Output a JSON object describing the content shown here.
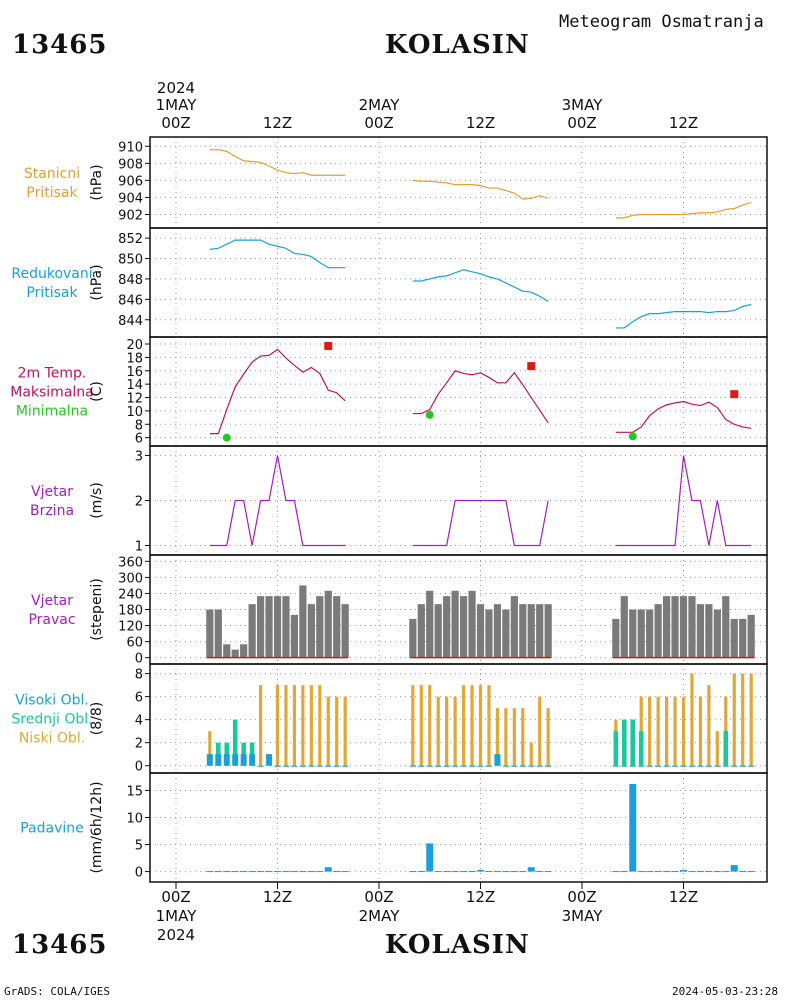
{
  "header": {
    "station_id": "13465",
    "station_name": "KOLASIN",
    "product": "Meteogram Osmatranja"
  },
  "footer": {
    "station_id": "13465",
    "station_name": "KOLASIN",
    "credit": "GrADS: COLA/IGES",
    "timestamp": "2024-05-03-23:28"
  },
  "time_axis": {
    "year": "2024",
    "labels": [
      {
        "hour": 0,
        "text": "00Z",
        "date": "1MAY"
      },
      {
        "hour": 12,
        "text": "12Z",
        "date": ""
      },
      {
        "hour": 24,
        "text": "00Z",
        "date": "2MAY"
      },
      {
        "hour": 36,
        "text": "12Z",
        "date": ""
      },
      {
        "hour": 48,
        "text": "00Z",
        "date": "3MAY"
      },
      {
        "hour": 60,
        "text": "12Z",
        "date": ""
      }
    ]
  },
  "colors": {
    "pressure": "#e0a030",
    "reduced": "#1aa0d8",
    "temp": "#c0145a",
    "tmax": "#e01818",
    "tmin": "#22c822",
    "wind": "#a020c0",
    "dir_bar": "#7a7a7a",
    "cloud_high": "#1aa0d8",
    "cloud_mid": "#1ac89a",
    "cloud_low": "#e0a838",
    "precip": "#1a9ee0"
  },
  "chart_data": [
    {
      "type": "line",
      "id": "station_pressure",
      "title_lines": [
        "Stanicni",
        "Pritisak"
      ],
      "ylabel": "(hPa)",
      "ylim": [
        901,
        910.5
      ],
      "yticks": [
        902,
        904,
        906,
        908,
        910
      ],
      "series": [
        {
          "x": [
            4,
            5,
            6,
            7,
            8,
            9,
            10,
            11,
            12,
            13,
            14,
            15,
            16,
            17,
            18,
            19,
            20
          ],
          "y": [
            909.6,
            909.6,
            909.4,
            908.8,
            908.3,
            908.2,
            908.1,
            907.7,
            907.2,
            906.9,
            906.8,
            906.9,
            906.6,
            906.6,
            906.6,
            906.6,
            906.6
          ]
        },
        {
          "x": [
            28,
            29,
            30,
            31,
            32,
            33,
            34,
            35,
            36,
            37,
            38,
            39,
            40,
            41,
            42,
            43,
            44
          ],
          "y": [
            906.0,
            905.9,
            905.9,
            905.8,
            905.7,
            905.5,
            905.5,
            905.5,
            905.4,
            905.1,
            905.1,
            904.8,
            904.5,
            903.8,
            903.9,
            904.2,
            903.9
          ]
        },
        {
          "x": [
            52,
            53,
            54,
            55,
            56,
            57,
            58,
            59,
            60,
            61,
            62,
            63,
            64,
            65,
            66,
            67,
            68
          ],
          "y": [
            901.6,
            901.6,
            901.9,
            902.0,
            902.0,
            902.0,
            902.0,
            902.0,
            902.0,
            902.1,
            902.2,
            902.2,
            902.3,
            902.6,
            902.7,
            903.1,
            903.4
          ]
        }
      ]
    },
    {
      "type": "line",
      "id": "reduced_pressure",
      "title_lines": [
        "Redukovani",
        "Pritisak"
      ],
      "ylabel": "(hPa)",
      "ylim": [
        842.8,
        852.5
      ],
      "yticks": [
        844,
        846,
        848,
        850,
        852
      ],
      "series": [
        {
          "x": [
            4,
            5,
            6,
            7,
            8,
            9,
            10,
            11,
            12,
            13,
            14,
            15,
            16,
            17,
            18,
            19,
            20
          ],
          "y": [
            850.9,
            851.0,
            851.4,
            851.8,
            851.8,
            851.8,
            851.8,
            851.4,
            851.2,
            851.0,
            850.5,
            850.4,
            850.2,
            849.6,
            849.1,
            849.1,
            849.1
          ]
        },
        {
          "x": [
            28,
            29,
            30,
            31,
            32,
            33,
            34,
            35,
            36,
            37,
            38,
            39,
            40,
            41,
            42,
            43,
            44
          ],
          "y": [
            847.8,
            847.8,
            848.0,
            848.2,
            848.3,
            848.6,
            848.9,
            848.7,
            848.5,
            848.2,
            848.0,
            847.6,
            847.2,
            846.8,
            846.7,
            846.3,
            845.8
          ]
        },
        {
          "x": [
            52,
            53,
            54,
            55,
            56,
            57,
            58,
            59,
            60,
            61,
            62,
            63,
            64,
            65,
            66,
            67,
            68
          ],
          "y": [
            843.2,
            843.2,
            843.8,
            844.3,
            844.6,
            844.6,
            844.7,
            844.8,
            844.8,
            844.8,
            844.8,
            844.7,
            844.8,
            844.8,
            844.9,
            845.3,
            845.5
          ]
        }
      ]
    },
    {
      "type": "line",
      "id": "temperature",
      "title_lines": [
        "2m Temp.",
        "Maksimalna",
        "Minimalna"
      ],
      "ylabel": "(C)",
      "ylim": [
        5.5,
        20.3
      ],
      "yticks": [
        6,
        8,
        10,
        12,
        14,
        16,
        18,
        20
      ],
      "series": [
        {
          "x": [
            4,
            5,
            6,
            7,
            8,
            9,
            10,
            11,
            12,
            13,
            14,
            15,
            16,
            17,
            18,
            19,
            20
          ],
          "y": [
            6.6,
            6.6,
            10.2,
            13.6,
            15.5,
            17.3,
            18.2,
            18.3,
            19.2,
            17.9,
            16.8,
            15.8,
            16.5,
            15.6,
            13.1,
            12.7,
            11.5
          ]
        },
        {
          "x": [
            28,
            29,
            30,
            31,
            32,
            33,
            34,
            35,
            36,
            37,
            38,
            39,
            40,
            41,
            42,
            43,
            44
          ],
          "y": [
            9.6,
            9.6,
            10.2,
            12.5,
            14.2,
            16.0,
            15.6,
            15.4,
            15.7,
            15.0,
            14.2,
            14.2,
            15.7,
            13.9,
            12.0,
            10.1,
            8.2
          ]
        },
        {
          "x": [
            52,
            53,
            54,
            55,
            56,
            57,
            58,
            59,
            60,
            61,
            62,
            63,
            64,
            65,
            66,
            67,
            68
          ],
          "y": [
            6.8,
            6.8,
            6.8,
            7.6,
            9.3,
            10.3,
            10.9,
            11.2,
            11.4,
            11.0,
            10.8,
            11.3,
            10.5,
            8.7,
            8.0,
            7.6,
            7.4
          ]
        }
      ],
      "maxima": [
        {
          "x": 18,
          "y": 19.7
        },
        {
          "x": 42,
          "y": 16.7
        },
        {
          "x": 66,
          "y": 12.5
        }
      ],
      "minima": [
        {
          "x": 6,
          "y": 6.0
        },
        {
          "x": 30,
          "y": 9.4
        },
        {
          "x": 54,
          "y": 6.2
        }
      ]
    },
    {
      "type": "line",
      "id": "wind_speed",
      "title_lines": [
        "Vjetar",
        "Brzina"
      ],
      "ylabel": "(m/s)",
      "ylim": [
        0.9,
        3.1
      ],
      "yticks": [
        1,
        2,
        3
      ],
      "series": [
        {
          "x": [
            4,
            5,
            6,
            7,
            8,
            9,
            10,
            11,
            12,
            13,
            14,
            15,
            16,
            17,
            18,
            19,
            20
          ],
          "y": [
            1,
            1,
            1,
            2,
            2,
            1,
            2,
            2,
            3,
            2,
            2,
            1,
            1,
            1,
            1,
            1,
            1
          ]
        },
        {
          "x": [
            28,
            29,
            30,
            31,
            32,
            33,
            34,
            35,
            36,
            37,
            38,
            39,
            40,
            41,
            42,
            43,
            44
          ],
          "y": [
            1,
            1,
            1,
            1,
            1,
            2,
            2,
            2,
            2,
            2,
            2,
            2,
            1,
            1,
            1,
            1,
            2
          ]
        },
        {
          "x": [
            52,
            53,
            54,
            55,
            56,
            57,
            58,
            59,
            60,
            61,
            62,
            63,
            64,
            65,
            66,
            67,
            68
          ],
          "y": [
            1,
            1,
            1,
            1,
            1,
            1,
            1,
            1,
            3,
            2,
            2,
            1,
            2,
            1,
            1,
            1,
            1
          ]
        }
      ]
    },
    {
      "type": "bar",
      "id": "wind_direction",
      "title_lines": [
        "Vjetar",
        "Pravac"
      ],
      "ylabel": "(stepeni)",
      "ylim": [
        -5,
        365
      ],
      "yticks": [
        0,
        60,
        120,
        180,
        240,
        300,
        360
      ],
      "x": [
        4,
        5,
        6,
        7,
        8,
        9,
        10,
        11,
        12,
        13,
        14,
        15,
        16,
        17,
        18,
        19,
        20,
        28,
        29,
        30,
        31,
        32,
        33,
        34,
        35,
        36,
        37,
        38,
        39,
        40,
        41,
        42,
        43,
        44,
        52,
        53,
        54,
        55,
        56,
        57,
        58,
        59,
        60,
        61,
        62,
        63,
        64,
        65,
        66,
        67,
        68
      ],
      "values": [
        180,
        180,
        50,
        30,
        50,
        200,
        230,
        230,
        230,
        230,
        160,
        270,
        200,
        230,
        250,
        230,
        200,
        145,
        200,
        250,
        200,
        230,
        250,
        230,
        250,
        200,
        180,
        200,
        180,
        230,
        200,
        200,
        200,
        200,
        145,
        230,
        180,
        180,
        180,
        200,
        230,
        230,
        230,
        230,
        200,
        200,
        180,
        230,
        145,
        145,
        160
      ]
    },
    {
      "type": "bar",
      "id": "clouds",
      "title_lines": [
        "Visoki Obl.",
        "Srednji Obl.",
        "Niski Obl."
      ],
      "ylabel": "(8/8)",
      "ylim": [
        -0.2,
        8.4
      ],
      "yticks": [
        0,
        2,
        4,
        6,
        8
      ],
      "x": [
        4,
        5,
        6,
        7,
        8,
        9,
        10,
        11,
        12,
        13,
        14,
        15,
        16,
        17,
        18,
        19,
        20,
        28,
        29,
        30,
        31,
        32,
        33,
        34,
        35,
        36,
        37,
        38,
        39,
        40,
        41,
        42,
        43,
        44,
        52,
        53,
        54,
        55,
        56,
        57,
        58,
        59,
        60,
        61,
        62,
        63,
        64,
        65,
        66,
        67,
        68
      ],
      "series": [
        {
          "name": "Visoki Obl.",
          "values": [
            1,
            1,
            1,
            1,
            1,
            1,
            0,
            1,
            0,
            0,
            0,
            0,
            0,
            0,
            0,
            0,
            0,
            0,
            0,
            0,
            0,
            0,
            0,
            0,
            0,
            0,
            0,
            1,
            0,
            0,
            0,
            0,
            0,
            0,
            0,
            0,
            0,
            0,
            0,
            0,
            0,
            0,
            0,
            0,
            0,
            0,
            0,
            0,
            0,
            0,
            0
          ]
        },
        {
          "name": "Srednji Obl.",
          "values": [
            1,
            2,
            2,
            4,
            2,
            2,
            0,
            1,
            0,
            0,
            0,
            0,
            0,
            0,
            0,
            0,
            0,
            0,
            0,
            0,
            0,
            0,
            0,
            0,
            0,
            0,
            0,
            1,
            0,
            0,
            0,
            0,
            0,
            0,
            3,
            4,
            4,
            3,
            0,
            0,
            0,
            0,
            0,
            0,
            0,
            0,
            0,
            3,
            0,
            0,
            0
          ]
        },
        {
          "name": "Niski Obl.",
          "values": [
            3,
            1,
            1,
            1,
            1,
            2,
            7,
            1,
            7,
            7,
            7,
            7,
            7,
            7,
            6,
            6,
            6,
            7,
            7,
            7,
            6,
            6,
            6,
            7,
            7,
            7,
            7,
            5,
            5,
            5,
            5,
            2,
            6,
            5,
            4,
            4,
            4,
            6,
            6,
            6,
            6,
            6,
            6,
            8,
            6,
            7,
            3,
            6,
            8,
            8,
            8
          ]
        }
      ]
    },
    {
      "type": "bar",
      "id": "precipitation",
      "title_lines": [
        "Padavine"
      ],
      "ylabel": "(mm/6h/12h)",
      "ylim": [
        -1,
        17.3
      ],
      "yticks": [
        0,
        5,
        10,
        15
      ],
      "x": [
        4,
        5,
        6,
        7,
        8,
        9,
        10,
        11,
        12,
        13,
        14,
        15,
        16,
        17,
        18,
        19,
        20,
        28,
        29,
        30,
        31,
        32,
        33,
        34,
        35,
        36,
        37,
        38,
        39,
        40,
        41,
        42,
        43,
        44,
        52,
        53,
        54,
        55,
        56,
        57,
        58,
        59,
        60,
        61,
        62,
        63,
        64,
        65,
        66,
        67,
        68
      ],
      "values": [
        0.1,
        0.1,
        0.1,
        0.1,
        0.1,
        0.1,
        0.1,
        0.1,
        0.1,
        0.1,
        0.1,
        0.1,
        0.1,
        0.1,
        0.8,
        0.1,
        0.1,
        0.1,
        0.1,
        5.2,
        0.1,
        0.1,
        0.1,
        0.1,
        0.1,
        0.3,
        0.1,
        0.1,
        0.1,
        0.1,
        0.1,
        0.8,
        0.1,
        0.1,
        0.1,
        0.1,
        16.2,
        0.1,
        0.1,
        0.1,
        0.1,
        0.1,
        0.3,
        0.1,
        0.1,
        0.1,
        0.1,
        0.1,
        1.2,
        0.1,
        0.1
      ]
    }
  ]
}
